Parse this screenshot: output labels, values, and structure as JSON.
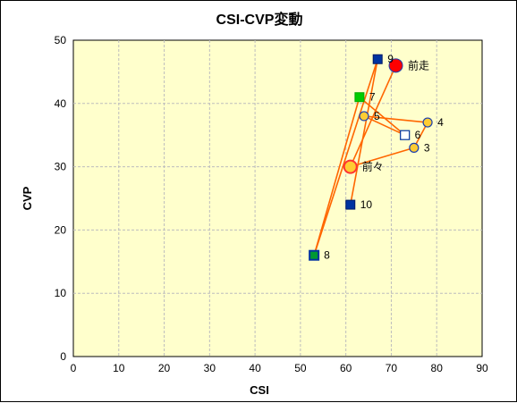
{
  "chart_data": {
    "type": "scatter",
    "title": "CSI-CVP変動",
    "xlabel": "CSI",
    "ylabel": "CVP",
    "xlim": [
      0,
      90
    ],
    "ylim": [
      0,
      50
    ],
    "xticks": [
      0,
      10,
      20,
      30,
      40,
      50,
      60,
      70,
      80,
      90
    ],
    "yticks": [
      0,
      10,
      20,
      30,
      40,
      50
    ],
    "grid": true,
    "colors": {
      "plot_bg": "#ffffcc",
      "grid": "#bdbdbd",
      "line": "#ff6600",
      "circle_fill": "#ffcc33",
      "circle_stroke": "#1a3fb0",
      "red_fill": "#ff0000",
      "blue_square": "#0033a0",
      "green_square": "#00cc00",
      "open_square": "#ffffff"
    },
    "path_order": [
      "前走",
      "前々",
      "3",
      "4",
      "5",
      "6",
      "7",
      "8",
      "9",
      "10"
    ],
    "points": [
      {
        "label": "前走",
        "x": 71,
        "y": 46,
        "marker": "circle-red-large"
      },
      {
        "label": "前々",
        "x": 61,
        "y": 30,
        "marker": "circle-large"
      },
      {
        "label": "3",
        "x": 75,
        "y": 33,
        "marker": "circle"
      },
      {
        "label": "4",
        "x": 78,
        "y": 37,
        "marker": "circle"
      },
      {
        "label": "5",
        "x": 64,
        "y": 38,
        "marker": "circle"
      },
      {
        "label": "6",
        "x": 73,
        "y": 35,
        "marker": "square-open"
      },
      {
        "label": "7",
        "x": 63,
        "y": 41,
        "marker": "square-green"
      },
      {
        "label": "8",
        "x": 53,
        "y": 16,
        "marker": "square-green-blue"
      },
      {
        "label": "9",
        "x": 67,
        "y": 47,
        "marker": "square-blue"
      },
      {
        "label": "10",
        "x": 61,
        "y": 24,
        "marker": "square-blue"
      }
    ]
  }
}
